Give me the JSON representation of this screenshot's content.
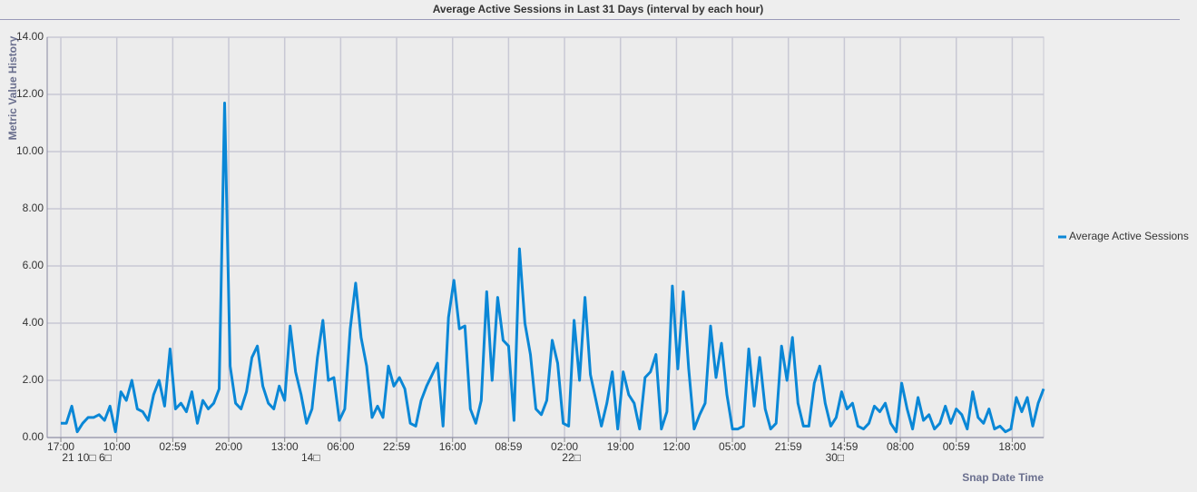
{
  "chart_data": {
    "type": "line",
    "title": "Average Active Sessions in Last 31 Days (interval by each hour)",
    "y_label": "Metric Value History",
    "x_label": "Snap Date Time",
    "xlim": [
      -10,
      720
    ],
    "ylim": [
      0,
      14
    ],
    "yticks": [
      {
        "value": 0,
        "label": "0.00"
      },
      {
        "value": 2,
        "label": "2.00"
      },
      {
        "value": 4,
        "label": "4.00"
      },
      {
        "value": 6,
        "label": "6.00"
      },
      {
        "value": 8,
        "label": "8.00"
      },
      {
        "value": 10,
        "label": "10.00"
      },
      {
        "value": 12,
        "label": "12.00"
      },
      {
        "value": 14,
        "label": "14.00"
      }
    ],
    "xticks": [
      {
        "value": 0,
        "label": "17:00"
      },
      {
        "value": 41,
        "label": "10:00"
      },
      {
        "value": 82,
        "label": "02:59"
      },
      {
        "value": 123,
        "label": "20:00"
      },
      {
        "value": 164,
        "label": "13:00"
      },
      {
        "value": 205,
        "label": "06:00"
      },
      {
        "value": 246,
        "label": "22:59"
      },
      {
        "value": 287,
        "label": "16:00"
      },
      {
        "value": 328,
        "label": "08:59"
      },
      {
        "value": 369,
        "label": "02:00"
      },
      {
        "value": 410,
        "label": "19:00"
      },
      {
        "value": 451,
        "label": "12:00"
      },
      {
        "value": 492,
        "label": "05:00"
      },
      {
        "value": 533,
        "label": "21:59"
      },
      {
        "value": 574,
        "label": "14:59"
      },
      {
        "value": 615,
        "label": "08:00"
      },
      {
        "value": 656,
        "label": "00:59"
      },
      {
        "value": 697,
        "label": "18:00"
      }
    ],
    "x_date_labels": [
      {
        "value": 19,
        "label": "21 10□ 6□"
      },
      {
        "value": 183,
        "label": "14□"
      },
      {
        "value": 374,
        "label": "22□"
      },
      {
        "value": 567,
        "label": "30□"
      }
    ],
    "grid": true,
    "legend": "right",
    "x": [
      0,
      4,
      8,
      12,
      16,
      20,
      24,
      28,
      32,
      36,
      40,
      44,
      48,
      52,
      56,
      60,
      64,
      68,
      72,
      76,
      80,
      84,
      88,
      92,
      96,
      100,
      104,
      108,
      112,
      116,
      120,
      124,
      128,
      132,
      136,
      140,
      144,
      148,
      152,
      156,
      160,
      164,
      168,
      172,
      176,
      180,
      184,
      188,
      192,
      196,
      200,
      204,
      208,
      212,
      216,
      220,
      224,
      228,
      232,
      236,
      240,
      244,
      248,
      252,
      256,
      260,
      264,
      268,
      272,
      276,
      280,
      284,
      288,
      292,
      296,
      300,
      304,
      308,
      312,
      316,
      320,
      324,
      328,
      332,
      336,
      340,
      344,
      348,
      352,
      356,
      360,
      364,
      368,
      372,
      376,
      380,
      384,
      388,
      392,
      396,
      400,
      404,
      408,
      412,
      416,
      420,
      424,
      428,
      432,
      436,
      440,
      444,
      448,
      452,
      456,
      460,
      464,
      468,
      472,
      476,
      480,
      484,
      488,
      492,
      496,
      500,
      504,
      508,
      512,
      516,
      520,
      524,
      528,
      532,
      536,
      540,
      544,
      548,
      552,
      556,
      560,
      564,
      568,
      572,
      576,
      580,
      584,
      588,
      592,
      596,
      600,
      604,
      608,
      612,
      616,
      620,
      624,
      628,
      632,
      636,
      640,
      644,
      648,
      652,
      656,
      660,
      664,
      668,
      672,
      676,
      680,
      684,
      688,
      692,
      696,
      700,
      704,
      708,
      712,
      716,
      720
    ],
    "series": [
      {
        "name": "Average Active Sessions",
        "color": "#0a87d6",
        "values": [
          0.5,
          0.5,
          1.1,
          0.2,
          0.5,
          0.7,
          0.7,
          0.8,
          0.6,
          1.1,
          0.2,
          1.6,
          1.3,
          2.0,
          1.0,
          0.9,
          0.6,
          1.5,
          2.0,
          1.1,
          3.1,
          1.0,
          1.2,
          0.9,
          1.6,
          0.5,
          1.3,
          1.0,
          1.2,
          1.7,
          11.7,
          2.5,
          1.2,
          1.0,
          1.6,
          2.8,
          3.2,
          1.8,
          1.2,
          1.0,
          1.8,
          1.3,
          3.9,
          2.3,
          1.5,
          0.5,
          1.0,
          2.8,
          4.1,
          2.0,
          2.1,
          0.6,
          1.0,
          3.8,
          5.4,
          3.5,
          2.5,
          0.7,
          1.1,
          0.7,
          2.5,
          1.8,
          2.1,
          1.7,
          0.5,
          0.4,
          1.3,
          1.8,
          2.2,
          2.6,
          0.4,
          4.2,
          5.5,
          3.8,
          3.9,
          1.0,
          0.5,
          1.3,
          5.1,
          2.0,
          4.9,
          3.4,
          3.2,
          0.6,
          6.6,
          4.0,
          2.9,
          1.0,
          0.8,
          1.3,
          3.4,
          2.6,
          0.5,
          0.4,
          4.1,
          2.0,
          4.9,
          2.2,
          1.3,
          0.4,
          1.2,
          2.3,
          0.3,
          2.3,
          1.5,
          1.2,
          0.3,
          2.1,
          2.3,
          2.9,
          0.3,
          0.9,
          5.3,
          2.4,
          5.1,
          2.4,
          0.3,
          0.8,
          1.2,
          3.9,
          2.1,
          3.3,
          1.5,
          0.3,
          0.3,
          0.4,
          3.1,
          1.1,
          2.8,
          1.0,
          0.3,
          0.5,
          3.2,
          2.0,
          3.5,
          1.2,
          0.4,
          0.4,
          1.9,
          2.5,
          1.2,
          0.4,
          0.7,
          1.6,
          1.0,
          1.2,
          0.4,
          0.3,
          0.5,
          1.1,
          0.9,
          1.2,
          0.5,
          0.2,
          1.9,
          1.0,
          0.3,
          1.4,
          0.6,
          0.8,
          0.3,
          0.5,
          1.1,
          0.5,
          1.0,
          0.8,
          0.3,
          1.6,
          0.7,
          0.5,
          1.0,
          0.3,
          0.4,
          0.2,
          0.3,
          1.4,
          0.9,
          1.4,
          0.4,
          1.2,
          1.7
        ]
      }
    ]
  }
}
